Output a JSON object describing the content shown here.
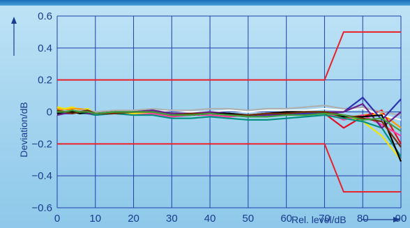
{
  "chart_data": {
    "type": "line",
    "xlabel": "Rel. level/dB",
    "ylabel": "Deviation/dB",
    "xlim": [
      0,
      90
    ],
    "ylim": [
      -0.6,
      0.6
    ],
    "xticks": [
      0,
      10,
      20,
      30,
      40,
      50,
      60,
      70,
      80,
      90
    ],
    "yticks": [
      0.6,
      0.4,
      0.2,
      0,
      -0.2,
      -0.4,
      -0.6
    ],
    "ytick_labels": [
      "0.6",
      "0.4",
      "0.2",
      "0",
      "−0.2",
      "−0.4",
      "−0.6"
    ],
    "grid": true,
    "colors": {
      "grid": "#1f3fa8",
      "tolerance": "#e8202a",
      "text": "#1a3c8c"
    },
    "x": [
      0,
      2,
      4,
      6,
      8,
      10,
      15,
      20,
      25,
      30,
      35,
      40,
      45,
      50,
      55,
      60,
      65,
      70,
      75,
      80,
      85,
      90
    ],
    "tolerance": [
      {
        "x": [
          0,
          70,
          75,
          90
        ],
        "y": [
          0.2,
          0.2,
          0.5,
          0.5
        ]
      },
      {
        "x": [
          0,
          70,
          75,
          90
        ],
        "y": [
          -0.2,
          -0.2,
          -0.5,
          -0.5
        ]
      }
    ],
    "series": [
      {
        "color": "#f2e600",
        "values": [
          0.03,
          0.02,
          0.03,
          0.01,
          0.02,
          -0.01,
          0.0,
          -0.01,
          0.0,
          -0.02,
          -0.02,
          -0.01,
          -0.01,
          -0.03,
          -0.02,
          -0.01,
          0.0,
          0.0,
          -0.02,
          -0.06,
          -0.15,
          -0.3
        ]
      },
      {
        "color": "#ff9a00",
        "values": [
          0.02,
          0.01,
          0.02,
          0.02,
          0.01,
          -0.01,
          0.0,
          0.0,
          0.01,
          -0.01,
          -0.02,
          -0.01,
          -0.01,
          -0.02,
          -0.02,
          -0.01,
          -0.01,
          -0.01,
          -0.04,
          -0.02,
          -0.01,
          -0.1
        ]
      },
      {
        "color": "#e01020",
        "values": [
          -0.01,
          0.0,
          0.01,
          -0.01,
          0.0,
          -0.01,
          -0.01,
          0.01,
          0.0,
          -0.01,
          -0.01,
          0.0,
          -0.01,
          -0.02,
          -0.01,
          0.0,
          0.0,
          -0.01,
          -0.1,
          -0.03,
          0.01,
          -0.2
        ]
      },
      {
        "color": "#ff40a0",
        "values": [
          0.01,
          -0.01,
          0.0,
          0.01,
          -0.01,
          -0.02,
          -0.01,
          -0.02,
          -0.01,
          -0.03,
          -0.02,
          -0.02,
          -0.03,
          -0.02,
          -0.01,
          -0.02,
          -0.01,
          0.0,
          -0.05,
          -0.02,
          -0.08,
          -0.15
        ]
      },
      {
        "color": "#ffffff",
        "values": [
          -0.02,
          0.01,
          -0.01,
          0.0,
          0.0,
          -0.01,
          0.0,
          0.01,
          0.0,
          0.01,
          0.0,
          0.0,
          0.01,
          0.0,
          0.01,
          0.01,
          0.01,
          0.02,
          0.01,
          0.02,
          -0.02,
          -0.05
        ]
      },
      {
        "color": "#b0b0b0",
        "values": [
          0.0,
          0.01,
          0.0,
          0.01,
          0.01,
          0.0,
          0.01,
          0.01,
          0.02,
          0.01,
          0.01,
          0.02,
          0.02,
          0.01,
          0.02,
          0.02,
          0.03,
          0.04,
          0.02,
          0.03,
          0.0,
          -0.02
        ]
      },
      {
        "color": "#009080",
        "values": [
          -0.01,
          -0.01,
          0.0,
          -0.01,
          -0.01,
          -0.02,
          -0.01,
          -0.02,
          -0.02,
          -0.04,
          -0.04,
          -0.03,
          -0.04,
          -0.05,
          -0.05,
          -0.04,
          -0.03,
          -0.02,
          -0.04,
          -0.06,
          -0.1,
          -0.28
        ]
      },
      {
        "color": "#3030b0",
        "values": [
          0.0,
          0.0,
          -0.01,
          0.0,
          -0.01,
          -0.01,
          0.0,
          0.0,
          0.01,
          -0.02,
          -0.02,
          -0.01,
          -0.02,
          -0.03,
          -0.02,
          -0.02,
          -0.01,
          -0.01,
          0.0,
          0.09,
          -0.05,
          0.08
        ]
      },
      {
        "color": "#6a2090",
        "values": [
          -0.02,
          -0.01,
          -0.01,
          0.0,
          -0.01,
          -0.01,
          -0.01,
          0.0,
          0.01,
          -0.01,
          -0.01,
          0.0,
          -0.01,
          -0.02,
          -0.02,
          -0.01,
          0.0,
          0.0,
          0.0,
          0.05,
          -0.1,
          0.0
        ]
      },
      {
        "color": "#000000",
        "values": [
          -0.01,
          0.0,
          0.0,
          -0.01,
          0.0,
          -0.01,
          0.0,
          0.0,
          0.0,
          -0.02,
          -0.02,
          -0.01,
          -0.01,
          -0.02,
          -0.01,
          0.0,
          0.0,
          0.0,
          -0.03,
          -0.03,
          -0.02,
          -0.31
        ]
      },
      {
        "color": "#703000",
        "values": [
          0.01,
          0.0,
          -0.01,
          0.0,
          0.01,
          -0.01,
          -0.01,
          0.0,
          0.0,
          -0.02,
          -0.01,
          -0.01,
          -0.02,
          -0.02,
          -0.01,
          -0.01,
          0.0,
          0.0,
          -0.02,
          -0.04,
          -0.06,
          -0.22
        ]
      },
      {
        "color": "#40a040",
        "values": [
          0.0,
          0.0,
          0.01,
          0.0,
          0.0,
          -0.01,
          0.0,
          0.0,
          0.0,
          -0.02,
          -0.02,
          -0.01,
          -0.02,
          -0.03,
          -0.03,
          -0.02,
          -0.02,
          -0.01,
          -0.02,
          -0.05,
          -0.04,
          -0.12
        ]
      }
    ]
  }
}
